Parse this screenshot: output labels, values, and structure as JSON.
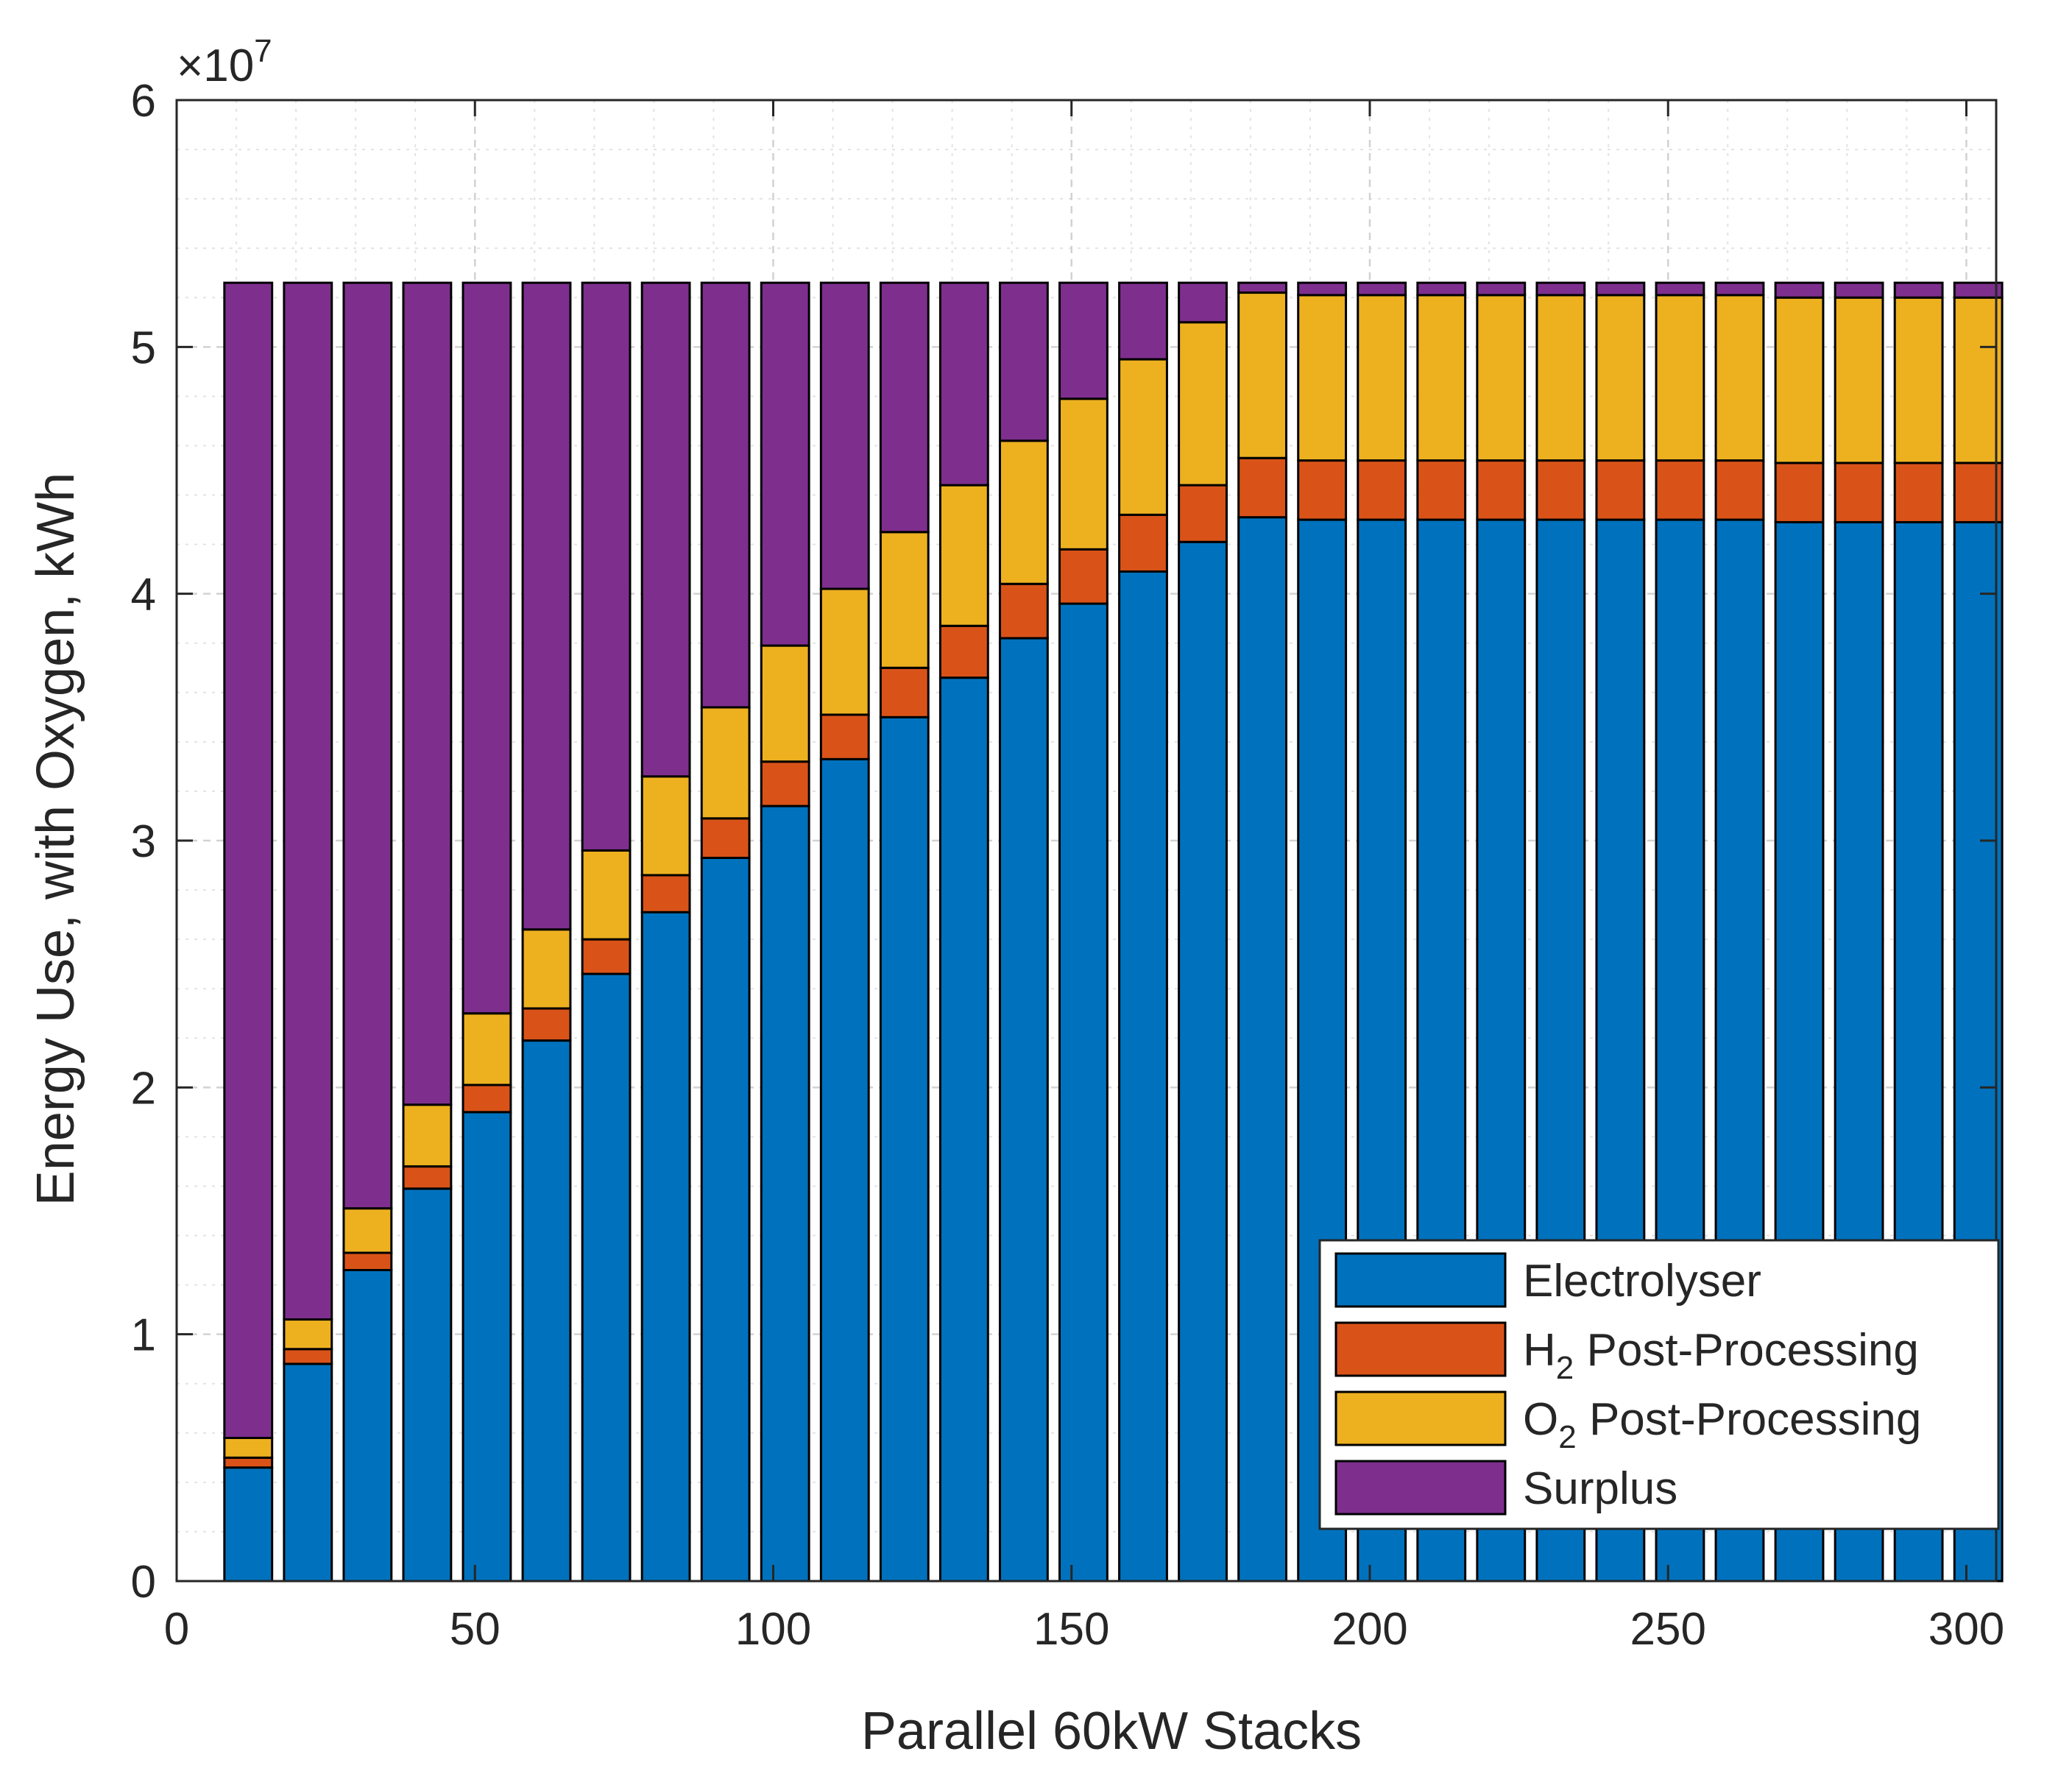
{
  "chart_data": {
    "type": "bar",
    "stacked": true,
    "xlabel": "Parallel 60kW Stacks",
    "ylabel": "Energy Use, with Oxygen, kWh",
    "y_exponent_label": "×10",
    "y_exponent_power": "7",
    "xlim": [
      0,
      305
    ],
    "ylim": [
      0,
      6
    ],
    "xticks": [
      0,
      50,
      100,
      150,
      200,
      250,
      300
    ],
    "xtick_labels": [
      "0",
      "50",
      "100",
      "150",
      "200",
      "250",
      "300"
    ],
    "yticks": [
      0,
      1,
      2,
      3,
      4,
      5,
      6
    ],
    "ytick_labels": [
      "0",
      "1",
      "2",
      "3",
      "4",
      "5",
      "6"
    ],
    "grid": true,
    "minor_grid": true,
    "legend_position": "bottom-right",
    "x": [
      12,
      22,
      32,
      42,
      52,
      62,
      72,
      82,
      92,
      102,
      112,
      122,
      132,
      142,
      152,
      162,
      172,
      182,
      192,
      202,
      212,
      222,
      232,
      242,
      252,
      262,
      272,
      282,
      292,
      302
    ],
    "series": [
      {
        "name": "Electrolyser",
        "name_main": "Electrolyser",
        "name_sub": "",
        "name_rest": "",
        "color": "#0072BD",
        "values": [
          0.46,
          0.88,
          1.26,
          1.59,
          1.9,
          2.19,
          2.46,
          2.71,
          2.93,
          3.14,
          3.33,
          3.5,
          3.66,
          3.82,
          3.96,
          4.09,
          4.21,
          4.31,
          4.3,
          4.3,
          4.3,
          4.3,
          4.3,
          4.3,
          4.3,
          4.3,
          4.29,
          4.29,
          4.29,
          4.29
        ]
      },
      {
        "name": "H2 Post-Processing",
        "name_main": "H",
        "name_sub": "2",
        "name_rest": " Post-Processing",
        "color": "#D95319",
        "values": [
          0.04,
          0.06,
          0.07,
          0.09,
          0.11,
          0.13,
          0.14,
          0.15,
          0.16,
          0.18,
          0.18,
          0.2,
          0.21,
          0.22,
          0.22,
          0.23,
          0.23,
          0.24,
          0.24,
          0.24,
          0.24,
          0.24,
          0.24,
          0.24,
          0.24,
          0.24,
          0.24,
          0.24,
          0.24,
          0.24
        ]
      },
      {
        "name": "O2 Post-Processing",
        "name_main": "O",
        "name_sub": "2",
        "name_rest": " Post-Processing",
        "color": "#EDB120",
        "values": [
          0.08,
          0.12,
          0.18,
          0.25,
          0.29,
          0.32,
          0.36,
          0.4,
          0.45,
          0.47,
          0.51,
          0.55,
          0.57,
          0.58,
          0.61,
          0.63,
          0.66,
          0.67,
          0.67,
          0.67,
          0.67,
          0.67,
          0.67,
          0.67,
          0.67,
          0.67,
          0.67,
          0.67,
          0.67,
          0.67
        ]
      },
      {
        "name": "Surplus",
        "name_main": "Surplus",
        "name_sub": "",
        "name_rest": "",
        "color": "#7E2F8E",
        "values": [
          4.68,
          4.2,
          3.75,
          3.33,
          2.96,
          2.62,
          2.3,
          2.0,
          1.72,
          1.47,
          1.24,
          1.01,
          0.82,
          0.64,
          0.47,
          0.31,
          0.16,
          0.04,
          0.05,
          0.05,
          0.05,
          0.05,
          0.05,
          0.05,
          0.05,
          0.05,
          0.06,
          0.06,
          0.06,
          0.06
        ]
      }
    ]
  }
}
